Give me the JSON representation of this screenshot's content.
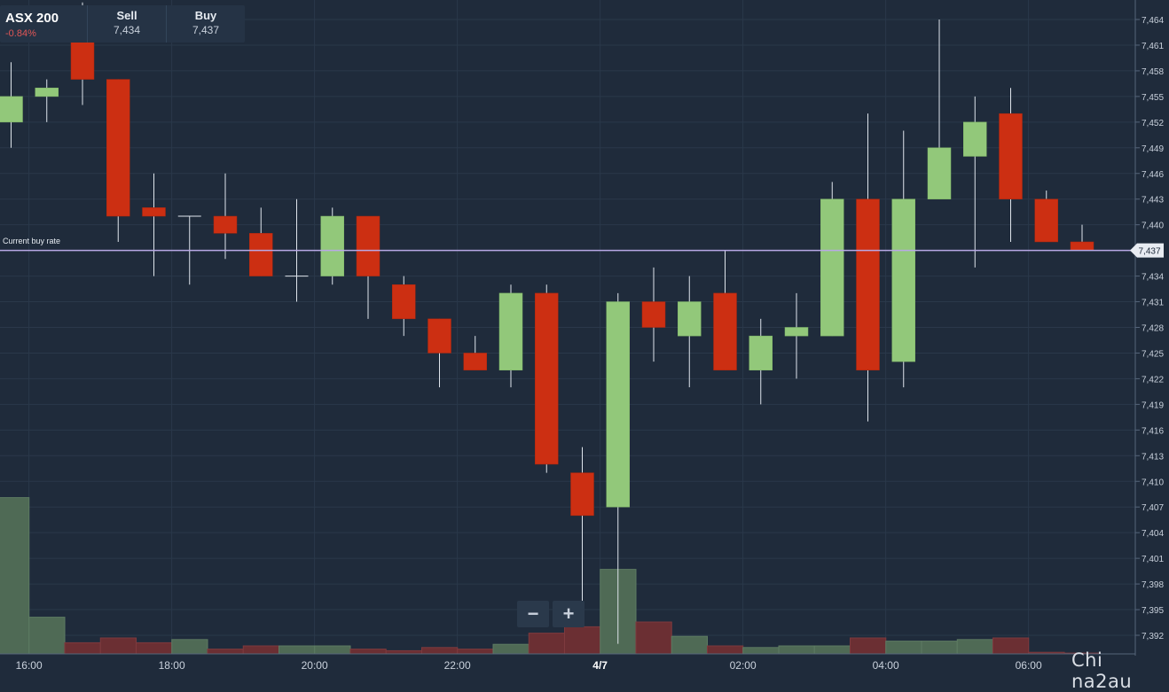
{
  "quote": {
    "symbol": "ASX 200",
    "change": "-0.84%",
    "sell_label": "Sell",
    "sell_value": "7,434",
    "buy_label": "Buy",
    "buy_value": "7,437"
  },
  "zoom": {
    "minus": "−",
    "plus": "+"
  },
  "buy_rate_label": "Current buy rate",
  "buy_rate_tag": "7,437",
  "watermark": "Chi na2au",
  "colors": {
    "background": "#1f2b3b",
    "up": "#92c87a",
    "down": "#cc2f12",
    "buy_line": "#b9a9e6"
  },
  "chart_data": {
    "type": "candlestick",
    "ylim": [
      7390.5,
      7466
    ],
    "y_ticks": [
      "7,464",
      "7,461",
      "7,458",
      "7,455",
      "7,452",
      "7,449",
      "7,446",
      "7,443",
      "7,440",
      "7,437",
      "7,434",
      "7,431",
      "7,428",
      "7,425",
      "7,422",
      "7,419",
      "7,416",
      "7,413",
      "7,410",
      "7,407",
      "7,404",
      "7,401",
      "7,398",
      "7,395",
      "7,392"
    ],
    "x_ticks": [
      {
        "label": "16:00",
        "bold": false,
        "idx": 0.5
      },
      {
        "label": "18:00",
        "bold": false,
        "idx": 4.5
      },
      {
        "label": "20:00",
        "bold": false,
        "idx": 8.5
      },
      {
        "label": "22:00",
        "bold": false,
        "idx": 12.5
      },
      {
        "label": "4/7",
        "bold": true,
        "idx": 16.5
      },
      {
        "label": "02:00",
        "bold": false,
        "idx": 20.5
      },
      {
        "label": "04:00",
        "bold": false,
        "idx": 24.5
      },
      {
        "label": "06:00",
        "bold": false,
        "idx": 28.5
      }
    ],
    "current_buy_rate": 7437,
    "candles": [
      {
        "o": 7452,
        "h": 7459,
        "l": 7449,
        "c": 7455
      },
      {
        "o": 7455,
        "h": 7457,
        "l": 7452,
        "c": 7456
      },
      {
        "o": 7463,
        "h": 7466,
        "l": 7454,
        "c": 7457
      },
      {
        "o": 7457,
        "h": 7457,
        "l": 7438,
        "c": 7441
      },
      {
        "o": 7442,
        "h": 7446,
        "l": 7434,
        "c": 7441
      },
      {
        "o": 7441,
        "h": 7441,
        "l": 7433,
        "c": 7441
      },
      {
        "o": 7441,
        "h": 7446,
        "l": 7436,
        "c": 7439
      },
      {
        "o": 7439,
        "h": 7442,
        "l": 7434,
        "c": 7434
      },
      {
        "o": 7434,
        "h": 7443,
        "l": 7431,
        "c": 7434
      },
      {
        "o": 7434,
        "h": 7442,
        "l": 7433,
        "c": 7441
      },
      {
        "o": 7441,
        "h": 7441,
        "l": 7429,
        "c": 7434
      },
      {
        "o": 7433,
        "h": 7434,
        "l": 7427,
        "c": 7429
      },
      {
        "o": 7429,
        "h": 7429,
        "l": 7421,
        "c": 7425
      },
      {
        "o": 7425,
        "h": 7427,
        "l": 7423,
        "c": 7423
      },
      {
        "o": 7423,
        "h": 7433,
        "l": 7421,
        "c": 7432
      },
      {
        "o": 7432,
        "h": 7433,
        "l": 7411,
        "c": 7412
      },
      {
        "o": 7411,
        "h": 7414,
        "l": 7396,
        "c": 7406
      },
      {
        "o": 7407,
        "h": 7432,
        "l": 7391,
        "c": 7431
      },
      {
        "o": 7431,
        "h": 7435,
        "l": 7424,
        "c": 7428
      },
      {
        "o": 7427,
        "h": 7434,
        "l": 7421,
        "c": 7431
      },
      {
        "o": 7432,
        "h": 7437,
        "l": 7423,
        "c": 7423
      },
      {
        "o": 7423,
        "h": 7429,
        "l": 7419,
        "c": 7427
      },
      {
        "o": 7427,
        "h": 7432,
        "l": 7422,
        "c": 7428
      },
      {
        "o": 7427,
        "h": 7445,
        "l": 7427,
        "c": 7443
      },
      {
        "o": 7443,
        "h": 7453,
        "l": 7417,
        "c": 7423
      },
      {
        "o": 7424,
        "h": 7451,
        "l": 7421,
        "c": 7443
      },
      {
        "o": 7443,
        "h": 7464,
        "l": 7443,
        "c": 7449
      },
      {
        "o": 7448,
        "h": 7455,
        "l": 7435,
        "c": 7452
      },
      {
        "o": 7453,
        "h": 7456,
        "l": 7438,
        "c": 7443
      },
      {
        "o": 7443,
        "h": 7444,
        "l": 7438,
        "c": 7438
      },
      {
        "o": 7438,
        "h": 7440,
        "l": 7437,
        "c": 7437
      }
    ],
    "volume_relative": [
      0.98,
      0.23,
      0.07,
      0.1,
      0.07,
      0.09,
      0.03,
      0.05,
      0.05,
      0.05,
      0.03,
      0.02,
      0.04,
      0.03,
      0.06,
      0.13,
      0.17,
      0.53,
      0.2,
      0.11,
      0.05,
      0.04,
      0.05,
      0.05,
      0.1,
      0.08,
      0.08,
      0.09,
      0.1,
      0.01,
      0.005
    ]
  }
}
